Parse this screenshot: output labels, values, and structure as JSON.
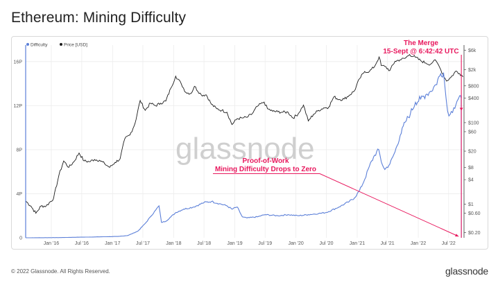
{
  "title": "Ethereum: Mining Difficulty",
  "footer": {
    "copyright": "© 2022 Glassnode. All Rights Reserved.",
    "logo": "glassnode"
  },
  "watermark": "glassnode",
  "colors": {
    "difficulty": "#5b7fd8",
    "price": "#1a1a1a",
    "annotation": "#e8175d",
    "grid": "#ececec",
    "axis_text": "#555555"
  },
  "chart_data": {
    "type": "line",
    "title": "Ethereum: Mining Difficulty",
    "legend": [
      {
        "key": "difficulty",
        "label": "Difficulty",
        "color": "#5b7fd8"
      },
      {
        "key": "price",
        "label": "Price [USD]",
        "color": "#1a1a1a"
      }
    ],
    "legend_position": "top-left",
    "grid": true,
    "xlim": [
      "2015-08-01",
      "2022-10-01"
    ],
    "x_ticks": [
      {
        "date": "2016-01-01",
        "label": "Jan '16"
      },
      {
        "date": "2016-07-01",
        "label": "Jul '16"
      },
      {
        "date": "2017-01-01",
        "label": "Jan '17"
      },
      {
        "date": "2017-07-01",
        "label": "Jul '17"
      },
      {
        "date": "2018-01-01",
        "label": "Jan '18"
      },
      {
        "date": "2018-07-01",
        "label": "Jul '18"
      },
      {
        "date": "2019-01-01",
        "label": "Jan '19"
      },
      {
        "date": "2019-07-01",
        "label": "Jul '19"
      },
      {
        "date": "2020-01-01",
        "label": "Jan '20"
      },
      {
        "date": "2020-07-01",
        "label": "Jul '20"
      },
      {
        "date": "2021-01-01",
        "label": "Jan '21"
      },
      {
        "date": "2021-07-01",
        "label": "Jul '21"
      },
      {
        "date": "2022-01-01",
        "label": "Jan '22"
      },
      {
        "date": "2022-07-01",
        "label": "Jul '22"
      }
    ],
    "y_left": {
      "scale": "linear",
      "unit": "P",
      "ylim": [
        0,
        17.5
      ],
      "ticks": [
        {
          "value": 0,
          "label": "0"
        },
        {
          "value": 4,
          "label": "4P"
        },
        {
          "value": 8,
          "label": "8P"
        },
        {
          "value": 12,
          "label": "12P"
        },
        {
          "value": 16,
          "label": "16P"
        }
      ]
    },
    "y_right": {
      "scale": "log",
      "ylim": [
        0.15,
        8000
      ],
      "ticks": [
        {
          "value": 0.2,
          "label": "$0.20"
        },
        {
          "value": 0.6,
          "label": "$0.60"
        },
        {
          "value": 1,
          "label": "$1"
        },
        {
          "value": 4,
          "label": "$4"
        },
        {
          "value": 8,
          "label": "$8"
        },
        {
          "value": 20,
          "label": "$20"
        },
        {
          "value": 60,
          "label": "$60"
        },
        {
          "value": 100,
          "label": "$100"
        },
        {
          "value": 400,
          "label": "$400"
        },
        {
          "value": 800,
          "label": "$800"
        },
        {
          "value": 2000,
          "label": "$2k"
        },
        {
          "value": 6000,
          "label": "$6k"
        }
      ]
    },
    "series": [
      {
        "name": "Difficulty",
        "axis": "left",
        "unit": "P",
        "points": [
          [
            "2015-08-01",
            0.001
          ],
          [
            "2015-12-01",
            0.01
          ],
          [
            "2016-03-01",
            0.02
          ],
          [
            "2016-06-01",
            0.05
          ],
          [
            "2016-09-01",
            0.07
          ],
          [
            "2016-12-01",
            0.1
          ],
          [
            "2017-02-01",
            0.12
          ],
          [
            "2017-04-01",
            0.2
          ],
          [
            "2017-06-01",
            0.6
          ],
          [
            "2017-07-15",
            1.3
          ],
          [
            "2017-08-15",
            1.9
          ],
          [
            "2017-09-15",
            2.5
          ],
          [
            "2017-10-05",
            2.9
          ],
          [
            "2017-10-20",
            1.4
          ],
          [
            "2017-11-15",
            1.5
          ],
          [
            "2017-12-15",
            1.9
          ],
          [
            "2018-01-15",
            2.3
          ],
          [
            "2018-03-01",
            2.6
          ],
          [
            "2018-05-01",
            2.8
          ],
          [
            "2018-07-01",
            3.2
          ],
          [
            "2018-08-15",
            3.3
          ],
          [
            "2018-10-01",
            3.1
          ],
          [
            "2018-11-15",
            2.9
          ],
          [
            "2018-12-15",
            2.6
          ],
          [
            "2019-01-15",
            2.8
          ],
          [
            "2019-02-01",
            2.3
          ],
          [
            "2019-02-15",
            1.9
          ],
          [
            "2019-03-15",
            1.8
          ],
          [
            "2019-05-15",
            1.9
          ],
          [
            "2019-07-01",
            2.1
          ],
          [
            "2019-09-15",
            2.0
          ],
          [
            "2019-11-15",
            2.1
          ],
          [
            "2020-01-15",
            2.0
          ],
          [
            "2020-03-15",
            2.1
          ],
          [
            "2020-05-15",
            2.2
          ],
          [
            "2020-07-01",
            2.3
          ],
          [
            "2020-09-15",
            2.8
          ],
          [
            "2020-11-15",
            3.3
          ],
          [
            "2020-12-15",
            3.6
          ],
          [
            "2021-01-15",
            4.3
          ],
          [
            "2021-02-15",
            5.3
          ],
          [
            "2021-03-15",
            6.5
          ],
          [
            "2021-04-15",
            7.5
          ],
          [
            "2021-05-10",
            8.0
          ],
          [
            "2021-05-25",
            6.9
          ],
          [
            "2021-06-15",
            6.2
          ],
          [
            "2021-07-15",
            6.7
          ],
          [
            "2021-08-15",
            7.8
          ],
          [
            "2021-09-15",
            9.3
          ],
          [
            "2021-10-15",
            10.5
          ],
          [
            "2021-11-15",
            11.3
          ],
          [
            "2021-12-15",
            12.3
          ],
          [
            "2022-01-15",
            12.6
          ],
          [
            "2022-02-15",
            13.0
          ],
          [
            "2022-03-15",
            13.3
          ],
          [
            "2022-04-15",
            13.9
          ],
          [
            "2022-05-15",
            14.9
          ],
          [
            "2022-06-01",
            15.0
          ],
          [
            "2022-06-15",
            12.8
          ],
          [
            "2022-06-25",
            11.5
          ],
          [
            "2022-07-10",
            11.2
          ],
          [
            "2022-08-01",
            11.8
          ],
          [
            "2022-08-20",
            12.4
          ],
          [
            "2022-09-05",
            12.9
          ],
          [
            "2022-09-14",
            12.7
          ],
          [
            "2022-09-15",
            0.0
          ]
        ]
      },
      {
        "name": "Price [USD]",
        "axis": "right",
        "unit": "USD",
        "points": [
          [
            "2015-08-01",
            1.2
          ],
          [
            "2015-09-01",
            0.9
          ],
          [
            "2015-10-01",
            0.6
          ],
          [
            "2015-11-01",
            0.9
          ],
          [
            "2015-12-01",
            0.9
          ],
          [
            "2016-01-15",
            1.4
          ],
          [
            "2016-02-15",
            5.0
          ],
          [
            "2016-03-15",
            11.5
          ],
          [
            "2016-04-15",
            8.0
          ],
          [
            "2016-05-15",
            11.0
          ],
          [
            "2016-06-15",
            18.0
          ],
          [
            "2016-07-15",
            11.5
          ],
          [
            "2016-08-15",
            11.0
          ],
          [
            "2016-09-15",
            12.5
          ],
          [
            "2016-10-15",
            12.0
          ],
          [
            "2016-11-15",
            9.8
          ],
          [
            "2016-12-15",
            8.0
          ],
          [
            "2017-01-15",
            10.5
          ],
          [
            "2017-02-15",
            13.0
          ],
          [
            "2017-03-15",
            40.0
          ],
          [
            "2017-04-15",
            50.0
          ],
          [
            "2017-05-15",
            95.0
          ],
          [
            "2017-06-15",
            350.0
          ],
          [
            "2017-07-15",
            200.0
          ],
          [
            "2017-08-15",
            300.0
          ],
          [
            "2017-09-15",
            260.0
          ],
          [
            "2017-10-15",
            300.0
          ],
          [
            "2017-11-15",
            340.0
          ],
          [
            "2017-12-15",
            700.0
          ],
          [
            "2018-01-13",
            1380.0
          ],
          [
            "2018-02-15",
            900.0
          ],
          [
            "2018-03-15",
            550.0
          ],
          [
            "2018-04-15",
            520.0
          ],
          [
            "2018-05-05",
            780.0
          ],
          [
            "2018-06-15",
            480.0
          ],
          [
            "2018-07-15",
            480.0
          ],
          [
            "2018-08-15",
            280.0
          ],
          [
            "2018-09-15",
            220.0
          ],
          [
            "2018-10-15",
            200.0
          ],
          [
            "2018-11-15",
            180.0
          ],
          [
            "2018-12-15",
            90.0
          ],
          [
            "2019-01-15",
            125.0
          ],
          [
            "2019-02-15",
            130.0
          ],
          [
            "2019-03-15",
            135.0
          ],
          [
            "2019-04-15",
            165.0
          ],
          [
            "2019-05-15",
            250.0
          ],
          [
            "2019-06-25",
            320.0
          ],
          [
            "2019-07-15",
            220.0
          ],
          [
            "2019-08-15",
            190.0
          ],
          [
            "2019-09-15",
            185.0
          ],
          [
            "2019-10-15",
            180.0
          ],
          [
            "2019-11-15",
            180.0
          ],
          [
            "2019-12-15",
            130.0
          ],
          [
            "2020-01-15",
            165.0
          ],
          [
            "2020-02-15",
            270.0
          ],
          [
            "2020-03-15",
            110.0
          ],
          [
            "2020-04-15",
            160.0
          ],
          [
            "2020-05-15",
            200.0
          ],
          [
            "2020-06-15",
            230.0
          ],
          [
            "2020-07-15",
            240.0
          ],
          [
            "2020-08-15",
            430.0
          ],
          [
            "2020-09-15",
            370.0
          ],
          [
            "2020-10-15",
            380.0
          ],
          [
            "2020-11-15",
            470.0
          ],
          [
            "2020-12-15",
            600.0
          ],
          [
            "2021-01-15",
            1200.0
          ],
          [
            "2021-02-15",
            1800.0
          ],
          [
            "2021-03-15",
            1800.0
          ],
          [
            "2021-04-15",
            2400.0
          ],
          [
            "2021-05-12",
            4100.0
          ],
          [
            "2021-05-25",
            2500.0
          ],
          [
            "2021-06-15",
            2400.0
          ],
          [
            "2021-07-15",
            1900.0
          ],
          [
            "2021-08-15",
            3200.0
          ],
          [
            "2021-09-15",
            3500.0
          ],
          [
            "2021-10-15",
            3800.0
          ],
          [
            "2021-11-10",
            4700.0
          ],
          [
            "2021-12-15",
            4000.0
          ],
          [
            "2022-01-15",
            3300.0
          ],
          [
            "2022-02-15",
            2900.0
          ],
          [
            "2022-03-15",
            2700.0
          ],
          [
            "2022-04-05",
            3400.0
          ],
          [
            "2022-04-25",
            2900.0
          ],
          [
            "2022-05-15",
            2000.0
          ],
          [
            "2022-06-18",
            1050.0
          ],
          [
            "2022-07-15",
            1300.0
          ],
          [
            "2022-08-15",
            1850.0
          ],
          [
            "2022-09-05",
            1600.0
          ],
          [
            "2022-09-15",
            1500.0
          ],
          [
            "2022-09-25",
            1330.0
          ]
        ]
      }
    ],
    "annotations": [
      {
        "id": "merge",
        "lines": [
          "The Merge",
          "15-Sept @ 6:42:42 UTC"
        ],
        "target_date": "2022-09-15",
        "color": "#e8175d"
      },
      {
        "id": "pow",
        "lines": [
          "Proof-of-Work",
          "Mining Difficulty Drops to Zero"
        ],
        "target_date": "2022-09-15",
        "target_value": 0,
        "color": "#e8175d"
      }
    ]
  }
}
